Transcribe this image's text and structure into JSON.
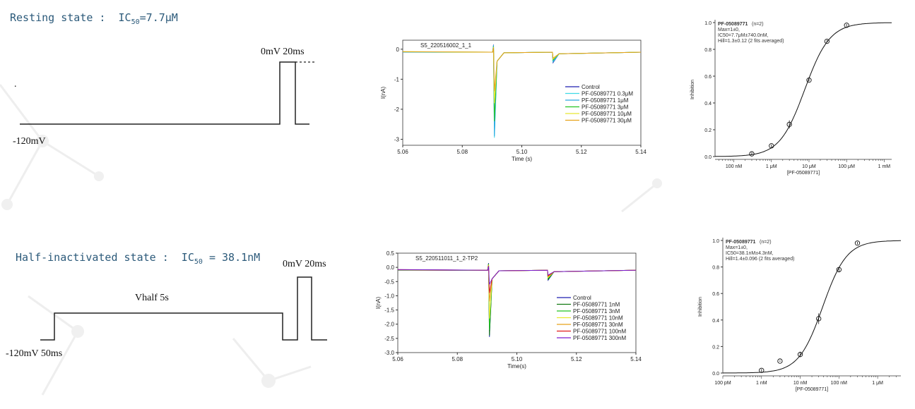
{
  "rows": [
    {
      "state_label": "Resting state :  IC",
      "state_sub": "50",
      "state_value": "=7.7μM",
      "protocol": {
        "holding": "-120mV",
        "step": "0mV 20ms",
        "dot": "."
      }
    },
    {
      "state_label": "Half-inactivated state :  IC",
      "state_sub": "50",
      "state_value": " = 38.1nM",
      "protocol": {
        "holding": "-120mV 50ms",
        "step": "0mV 20ms",
        "vhalf": "Vhalf 5s"
      }
    }
  ],
  "colors": {
    "state_text": "#2c5a7a",
    "control": "#1f1fb0",
    "c1": "#3dd9e6",
    "c2": "#2aa8e0",
    "c3": "#22c422",
    "c4": "#e8e830",
    "c5": "#e6a21a",
    "red": "#e01b1b",
    "purple": "#7a1fd1",
    "dark_green": "#127a12"
  },
  "chart_data": [
    {
      "type": "line",
      "title": "S5_220516002_1_1",
      "xlabel": "Time (s)",
      "ylabel": "I(nA)",
      "xlim": [
        5.06,
        5.14
      ],
      "ylim": [
        -3.2,
        0.3
      ],
      "x_ticks": [
        "5.06",
        "5.08",
        "5.10",
        "5.12",
        "5.14"
      ],
      "y_ticks": [
        "0",
        "-1",
        "-2",
        "-3"
      ],
      "series": [
        {
          "name": "Control",
          "color_key": "control",
          "peak": -2.6
        },
        {
          "name": "PF-05089771 0.3μM",
          "color_key": "c1",
          "peak": -2.95
        },
        {
          "name": "PF-05089771 1μM",
          "color_key": "c2",
          "peak": -2.9
        },
        {
          "name": "PF-05089771 3μM",
          "color_key": "c3",
          "peak": -2.4
        },
        {
          "name": "PF-05089771 10μM",
          "color_key": "c4",
          "peak": -1.8
        },
        {
          "name": "PF-05089771 30μM",
          "color_key": "c5",
          "peak": -1.4
        }
      ]
    },
    {
      "type": "scatter",
      "ylabel": "Inhibition",
      "xlabel": "[PF-05089771]",
      "annotation": {
        "name": "PF-05089771",
        "n": "(n=2)",
        "line1": "Max=1±0,",
        "line2": "IC50=7.7μM±740.0nM,",
        "line3": "Hill=1.3±0.12 (2 fits averaged)"
      },
      "x_ticks": [
        "100 nM",
        "1 μM",
        "10 μM",
        "100 μM",
        "1 mM"
      ],
      "y_ticks": [
        "0.0",
        "0.2",
        "0.4",
        "0.6",
        "0.8",
        "1.0"
      ],
      "xlim_log10_M": [
        -7.5,
        -2.8
      ],
      "ylim": [
        0,
        1
      ],
      "fit": {
        "ic50_M": 7.7e-06,
        "hill": 1.3,
        "max": 1
      },
      "points": [
        {
          "x": 3e-07,
          "y": 0.02,
          "err": 0.01
        },
        {
          "x": 1e-06,
          "y": 0.08,
          "err": 0.01
        },
        {
          "x": 3e-06,
          "y": 0.24,
          "err": 0.03
        },
        {
          "x": 1e-05,
          "y": 0.57,
          "err": 0.01
        },
        {
          "x": 3e-05,
          "y": 0.86,
          "err": 0.01
        },
        {
          "x": 0.0001,
          "y": 0.98,
          "err": 0.01
        }
      ]
    },
    {
      "type": "line",
      "title": "S5_220511011_1_2-TP2",
      "xlabel": "Time(s)",
      "ylabel": "I(nA)",
      "xlim": [
        5.06,
        5.14
      ],
      "ylim": [
        -3.0,
        0.5
      ],
      "x_ticks": [
        "5.06",
        "5.08",
        "5.10",
        "5.12",
        "5.14"
      ],
      "y_ticks": [
        "0.5",
        "0.0",
        "-0.5",
        "-1.0",
        "-1.5",
        "-2.0",
        "-2.5",
        "-3.0"
      ],
      "series": [
        {
          "name": "Control",
          "color_key": "control",
          "peak": -2.45
        },
        {
          "name": "PF-05089771 1nM",
          "color_key": "dark_green",
          "peak": -2.4
        },
        {
          "name": "PF-05089771 3nM",
          "color_key": "c3",
          "peak": -2.2
        },
        {
          "name": "PF-05089771 10nM",
          "color_key": "c4",
          "peak": -1.8
        },
        {
          "name": "PF-05089771 30nM",
          "color_key": "c5",
          "peak": -1.2
        },
        {
          "name": "PF-05089771 100nM",
          "color_key": "red",
          "peak": -0.9
        },
        {
          "name": "PF-05089771 300nM",
          "color_key": "purple",
          "peak": -0.6
        }
      ]
    },
    {
      "type": "scatter",
      "ylabel": "Inhibition",
      "xlabel": "[PF-05089771]",
      "annotation": {
        "name": "PF-05089771",
        "n": "(n=2)",
        "line1": "Max=1±0,",
        "line2": "IC50=38.1nM±4.3nM,",
        "line3": "Hill=1.4±0.096 (2 fits averaged)"
      },
      "x_ticks": [
        "100 pM",
        "1 nM",
        "10 nM",
        "100 nM",
        "1 μM"
      ],
      "y_ticks": [
        "0.0",
        "0.2",
        "0.4",
        "0.6",
        "0.8",
        "1.0"
      ],
      "xlim_log10_M": [
        -10,
        -5.4
      ],
      "ylim": [
        0,
        1
      ],
      "fit": {
        "ic50_M": 3.81e-08,
        "hill": 1.4,
        "max": 1
      },
      "points": [
        {
          "x": 1e-09,
          "y": 0.02,
          "err": 0.01
        },
        {
          "x": 3e-09,
          "y": 0.09,
          "err": 0.005
        },
        {
          "x": 1e-08,
          "y": 0.14,
          "err": 0.02
        },
        {
          "x": 3e-08,
          "y": 0.41,
          "err": 0.04
        },
        {
          "x": 1e-07,
          "y": 0.78,
          "err": 0.02
        },
        {
          "x": 3e-07,
          "y": 0.98,
          "err": 0.01
        }
      ]
    }
  ]
}
